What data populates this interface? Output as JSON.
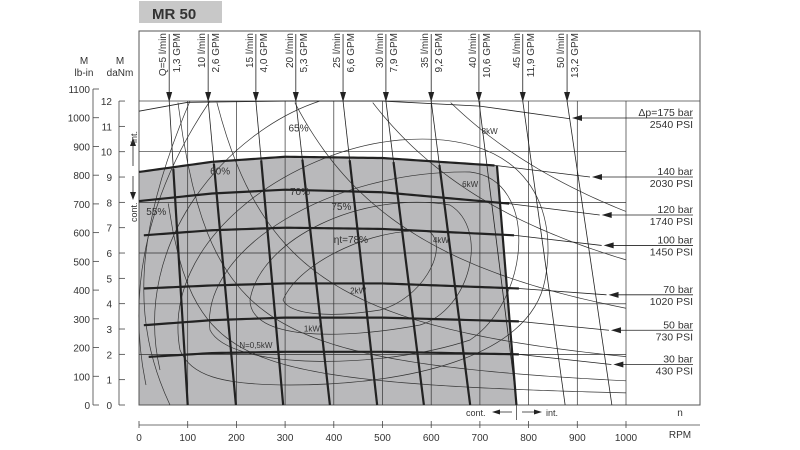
{
  "chart_data": {
    "type": "line",
    "title": "MR 50",
    "colors": {
      "region_fill": "#b9b9bb",
      "title_box": "#c8c8c8",
      "lines": "#222222"
    },
    "x_axis": {
      "label_top": "n",
      "label": "RPM",
      "range": [
        0,
        1000
      ],
      "ticks": [
        0,
        100,
        200,
        300,
        400,
        500,
        600,
        700,
        800,
        900,
        1000
      ]
    },
    "y_axis_danm": {
      "label_top": "M",
      "label": "daNm",
      "range": [
        0,
        12
      ],
      "ticks": [
        0,
        1,
        2,
        3,
        4,
        5,
        6,
        7,
        8,
        9,
        10,
        11,
        12
      ]
    },
    "y_axis_lbin": {
      "label_top": "M",
      "label": "lb-in",
      "range": [
        0,
        1100
      ],
      "ticks": [
        0,
        100,
        200,
        300,
        400,
        500,
        600,
        700,
        800,
        900,
        1000,
        1100
      ]
    },
    "regions": {
      "int_label": "int.",
      "cont_label": "cont.",
      "cont_x_label": "cont.",
      "int_x_label": "int.",
      "continuous_limit_rpm": 775
    },
    "flows": [
      {
        "l1": "Q=5 l/min",
        "l2": "1,3 GPM",
        "rpm_top": 62,
        "rpm_zero": 100
      },
      {
        "l1": "10 l/min",
        "l2": "2,6 GPM",
        "rpm_top": 142,
        "rpm_zero": 199
      },
      {
        "l1": "15 l/min",
        "l2": "4,0 GPM",
        "rpm_top": 240,
        "rpm_zero": 296
      },
      {
        "l1": "20 l/min",
        "l2": "5,3 GPM",
        "rpm_top": 322,
        "rpm_zero": 392
      },
      {
        "l1": "25 l/min",
        "l2": "6,6 GPM",
        "rpm_top": 419,
        "rpm_zero": 489
      },
      {
        "l1": "30 l/min",
        "l2": "7,9 GPM",
        "rpm_top": 507,
        "rpm_zero": 585
      },
      {
        "l1": "35 l/min",
        "l2": "9,2 GPM",
        "rpm_top": 600,
        "rpm_zero": 680
      },
      {
        "l1": "40 l/min",
        "l2": "10,6 GPM",
        "rpm_top": 698,
        "rpm_zero": 776
      },
      {
        "l1": "45 l/min",
        "l2": "11,9 GPM",
        "rpm_top": 788,
        "rpm_zero": 875
      },
      {
        "l1": "50 l/min",
        "l2": "13,2 GPM",
        "rpm_top": 879,
        "rpm_zero": 971
      }
    ],
    "pressures": [
      {
        "l1": "Δp=175 bar",
        "l2": "2540 PSI",
        "points": [
          [
            0,
            11.6
          ],
          [
            100,
            11.95
          ],
          [
            300,
            12
          ],
          [
            500,
            12
          ],
          [
            700,
            11.8
          ],
          [
            885,
            11.3
          ]
        ],
        "arrow_at": [
          885,
          11.3
        ]
      },
      {
        "l1": "140 bar",
        "l2": "2030 PSI",
        "points": [
          [
            0,
            9.2
          ],
          [
            150,
            9.6
          ],
          [
            300,
            9.8
          ],
          [
            500,
            9.75
          ],
          [
            735,
            9.45
          ],
          [
            926,
            9.0
          ]
        ],
        "arrow_at": [
          926,
          9.0
        ]
      },
      {
        "l1": "120 bar",
        "l2": "1740 PSI",
        "points": [
          [
            0,
            8.05
          ],
          [
            150,
            8.35
          ],
          [
            300,
            8.5
          ],
          [
            500,
            8.4
          ],
          [
            760,
            7.95
          ],
          [
            946,
            7.5
          ]
        ],
        "arrow_at": [
          946,
          7.5
        ]
      },
      {
        "l1": "100 bar",
        "l2": "1450 PSI",
        "points": [
          [
            10,
            6.7
          ],
          [
            150,
            6.9
          ],
          [
            300,
            7.0
          ],
          [
            500,
            6.95
          ],
          [
            770,
            6.7
          ],
          [
            950,
            6.3
          ]
        ],
        "arrow_at": [
          950,
          6.3
        ]
      },
      {
        "l1": "70 bar",
        "l2": "1020 PSI",
        "points": [
          [
            10,
            4.6
          ],
          [
            150,
            4.72
          ],
          [
            300,
            4.8
          ],
          [
            500,
            4.8
          ],
          [
            780,
            4.6
          ],
          [
            960,
            4.35
          ]
        ],
        "arrow_at": [
          960,
          4.35
        ]
      },
      {
        "l1": "50 bar",
        "l2": "730 PSI",
        "points": [
          [
            10,
            3.15
          ],
          [
            150,
            3.35
          ],
          [
            300,
            3.45
          ],
          [
            500,
            3.45
          ],
          [
            780,
            3.3
          ],
          [
            965,
            2.95
          ]
        ],
        "arrow_at": [
          965,
          2.95
        ]
      },
      {
        "l1": "30 bar",
        "l2": "430 PSI",
        "points": [
          [
            20,
            1.9
          ],
          [
            150,
            2.05
          ],
          [
            300,
            2.1
          ],
          [
            500,
            2.1
          ],
          [
            780,
            2.0
          ],
          [
            970,
            1.6
          ]
        ],
        "arrow_at": [
          970,
          1.6
        ]
      }
    ],
    "power_labels": [
      {
        "text": "8kW",
        "kw": 8,
        "at": [
          720,
          10.7
        ]
      },
      {
        "text": "6kW",
        "kw": 6,
        "at": [
          680,
          8.6
        ]
      },
      {
        "text": "4kW",
        "kw": 4,
        "at": [
          620,
          6.4
        ]
      },
      {
        "text": "2kW",
        "kw": 2,
        "at": [
          450,
          4.4
        ]
      },
      {
        "text": "1kW",
        "kw": 1,
        "at": [
          355,
          2.9
        ]
      },
      {
        "text": "N=0,5kW",
        "kw": 0.5,
        "at": [
          240,
          2.25
        ]
      }
    ],
    "efficiency_labels": [
      {
        "text": "65%",
        "at": [
          307,
          10.8
        ]
      },
      {
        "text": "60%",
        "at": [
          146,
          9.1
        ]
      },
      {
        "text": "70%",
        "at": [
          310,
          8.3
        ]
      },
      {
        "text": "75%",
        "at": [
          395,
          7.7
        ]
      },
      {
        "text": "ηt=78%",
        "at": [
          400,
          6.4
        ]
      },
      {
        "text": "55%",
        "at": [
          15,
          7.5
        ]
      }
    ]
  }
}
